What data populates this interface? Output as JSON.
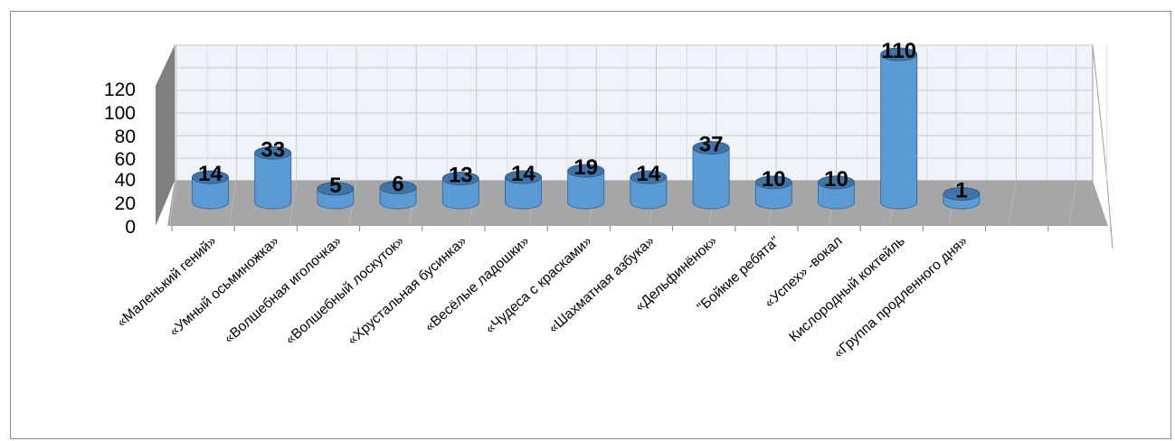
{
  "chart_data": {
    "type": "bar",
    "style": "3d-cylinder",
    "categories": [
      "«Маленький гений»",
      "«Умный осьминожка»",
      "«Волшебная иголочка»",
      "«Волшебный лоскуток»",
      "«Хрустальная бусинка»",
      "«Весёлые ладошки»",
      "«Чудеса с красками»",
      "«Шахматная азбука»",
      "«Дельфинёнок»",
      "\"Бойкие ребята\"",
      "«Успех» -вокал",
      "Кислородный коктейль",
      "«Группа продленного дня»"
    ],
    "values": [
      14,
      33,
      5,
      6,
      13,
      14,
      19,
      14,
      37,
      10,
      10,
      110,
      1
    ],
    "y_ticks": [
      "0",
      "20",
      "40",
      "60",
      "80",
      "100",
      "120"
    ],
    "ylim": [
      0,
      120
    ],
    "grid": true,
    "legend": "none",
    "colors": {
      "bar": "#5b9bd5",
      "bar_top": "#3f74a8",
      "floor": "#a6a6a6",
      "wall": "#f0f4fa",
      "grid": "#c8c8c8"
    }
  }
}
